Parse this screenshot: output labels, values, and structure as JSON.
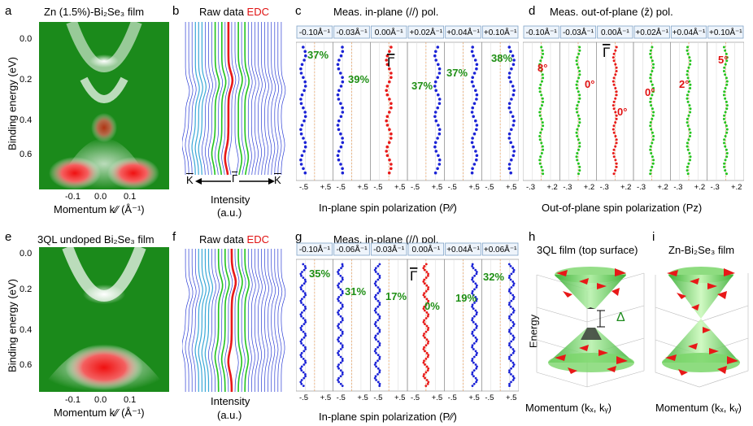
{
  "colors": {
    "arpes_green": "#178a17",
    "arpes_red": "#ee1c1c",
    "blue": "#1a22d6",
    "red": "#e81818",
    "green": "#22c41e",
    "pct": "#1e8f14",
    "label_red": "#e01010"
  },
  "a": {
    "letter": "a",
    "title": "Zn (1.5%)-Bi₂Se₃ film",
    "ylabel": "Binding energy (eV)",
    "yticks": [
      "0.0",
      "0.2",
      "0.4",
      "0.6"
    ],
    "xticks": [
      "-0.1",
      "0.0",
      "0.1"
    ],
    "xlabel": "Momentum  k∕∕ (Å⁻¹)"
  },
  "b": {
    "letter": "b",
    "title_main": "Raw data",
    "title_red": "EDC",
    "kbar_left": "K",
    "gamma": "Γ",
    "kbar_right": "K",
    "xlabel": "Intensity",
    "xunit": "(a.u.)"
  },
  "c": {
    "letter": "c",
    "title": "Meas. in-plane (//) pol.",
    "columns": [
      "-0.10Å⁻¹",
      "-0.03Å⁻¹",
      "0.00Å⁻¹",
      "+0.02Å⁻¹",
      "+0.04Å⁻¹",
      "+0.10Å⁻¹"
    ],
    "values": [
      "37%",
      "39%",
      "37%",
      "37%",
      "38%"
    ],
    "gamma": "Γ",
    "tick_minus": "-.5",
    "tick_plus": "+.5",
    "xlabel": "In-plane spin polarization (P∕∕)"
  },
  "d": {
    "letter": "d",
    "title": "Meas. out-of-plane (ẑ) pol.",
    "columns": [
      "-0.10Å⁻¹",
      "-0.03Å⁻¹",
      "0.00Å⁻¹",
      "+0.02Å⁻¹",
      "+0.04Å⁻¹",
      "+0.10Å⁻¹"
    ],
    "angles": [
      "8°",
      "0°",
      "0°",
      "0°",
      "2°",
      "5°"
    ],
    "gamma": "Γ",
    "tick_minus": "-.3",
    "tick_plus": "+.2",
    "xlabel": "Out-of-plane spin polarization (Pz)"
  },
  "e": {
    "letter": "e",
    "title": "3QL undoped Bi₂Se₃ film",
    "ylabel": "Binding energy (eV)",
    "yticks": [
      "0.0",
      "0.2",
      "0.4",
      "0.6"
    ],
    "xticks": [
      "-0.1",
      "0.0",
      "0.1"
    ],
    "xlabel": "Momentum  k∕∕ (Å⁻¹)"
  },
  "f": {
    "letter": "f",
    "title_main": "Raw data",
    "title_red": "EDC",
    "xlabel": "Intensity",
    "xunit": "(a.u.)"
  },
  "g": {
    "letter": "g",
    "title": "Meas. in-plane (//) pol.",
    "columns": [
      "-0.10Å⁻¹",
      "-0.06Å⁻¹",
      "-0.03Å⁻¹",
      "0.00Å⁻¹",
      "+0.04Å⁻¹",
      "+0.06Å⁻¹"
    ],
    "values": [
      "35%",
      "31%",
      "17%",
      "0%",
      "19%",
      "32%"
    ],
    "gamma": "Γ",
    "tick_minus": "-.5",
    "tick_plus": "+.5",
    "xlabel": "In-plane spin polarization (P∕∕)"
  },
  "h": {
    "letter": "h",
    "title": "3QL film (top surface)",
    "ylabel": "Energy",
    "delta": "Δ",
    "xlabel": "Momentum (kₓ, kᵧ)"
  },
  "i": {
    "letter": "i",
    "title": "Zn-Bi₂Se₃ film",
    "xlabel": "Momentum (kₓ, kᵧ)"
  }
}
